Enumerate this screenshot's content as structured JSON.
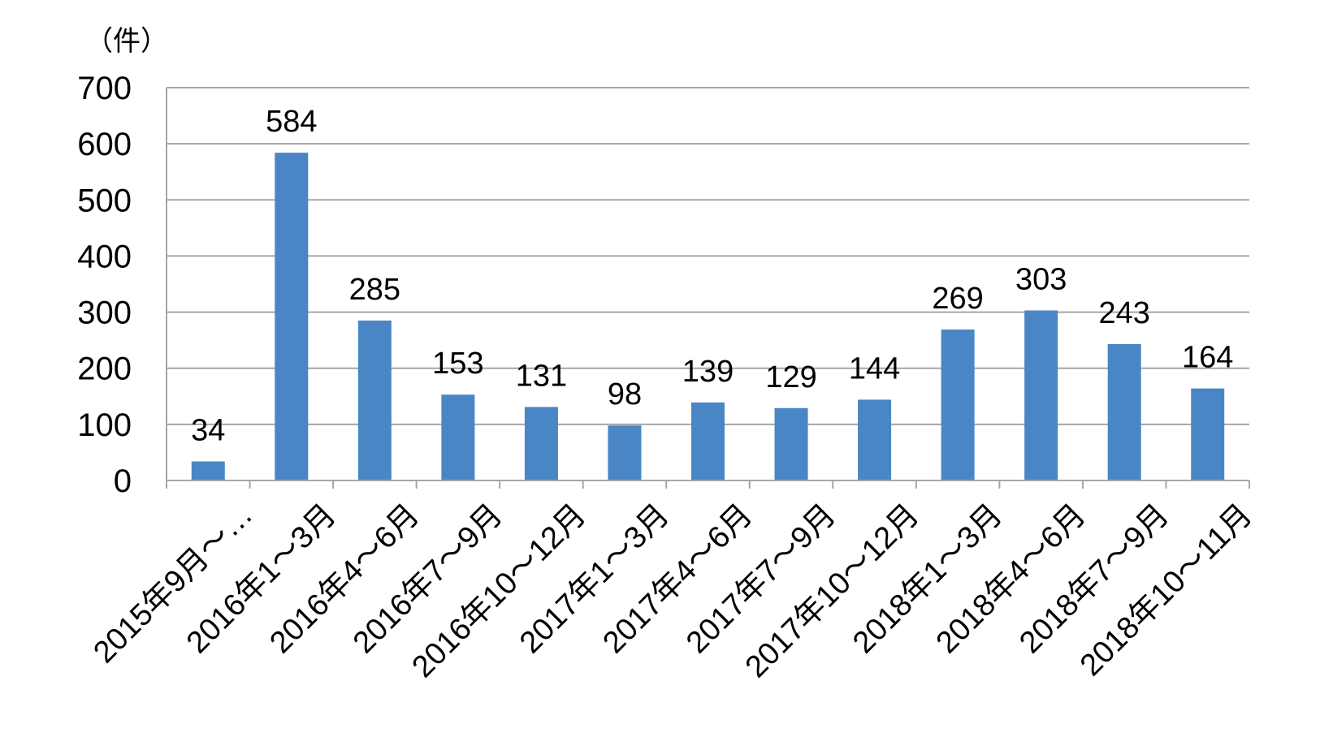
{
  "chart_data": {
    "type": "bar",
    "title": "",
    "xlabel": "",
    "ylabel": "（件）",
    "ylim": [
      0,
      700
    ],
    "yticks": [
      0,
      100,
      200,
      300,
      400,
      500,
      600,
      700
    ],
    "grid": true,
    "legend": "none",
    "bar_color": "#4a86c5",
    "categories": [
      "2015年9月～…",
      "2016年1～3月",
      "2016年4～6月",
      "2016年7～9月",
      "2016年10～12月",
      "2017年1～3月",
      "2017年4～6月",
      "2017年7～9月",
      "2017年10～12月",
      "2018年1～3月",
      "2018年4～6月",
      "2018年7～9月",
      "2018年10～11月"
    ],
    "values": [
      34,
      584,
      285,
      153,
      131,
      98,
      139,
      129,
      144,
      269,
      303,
      243,
      164
    ]
  }
}
